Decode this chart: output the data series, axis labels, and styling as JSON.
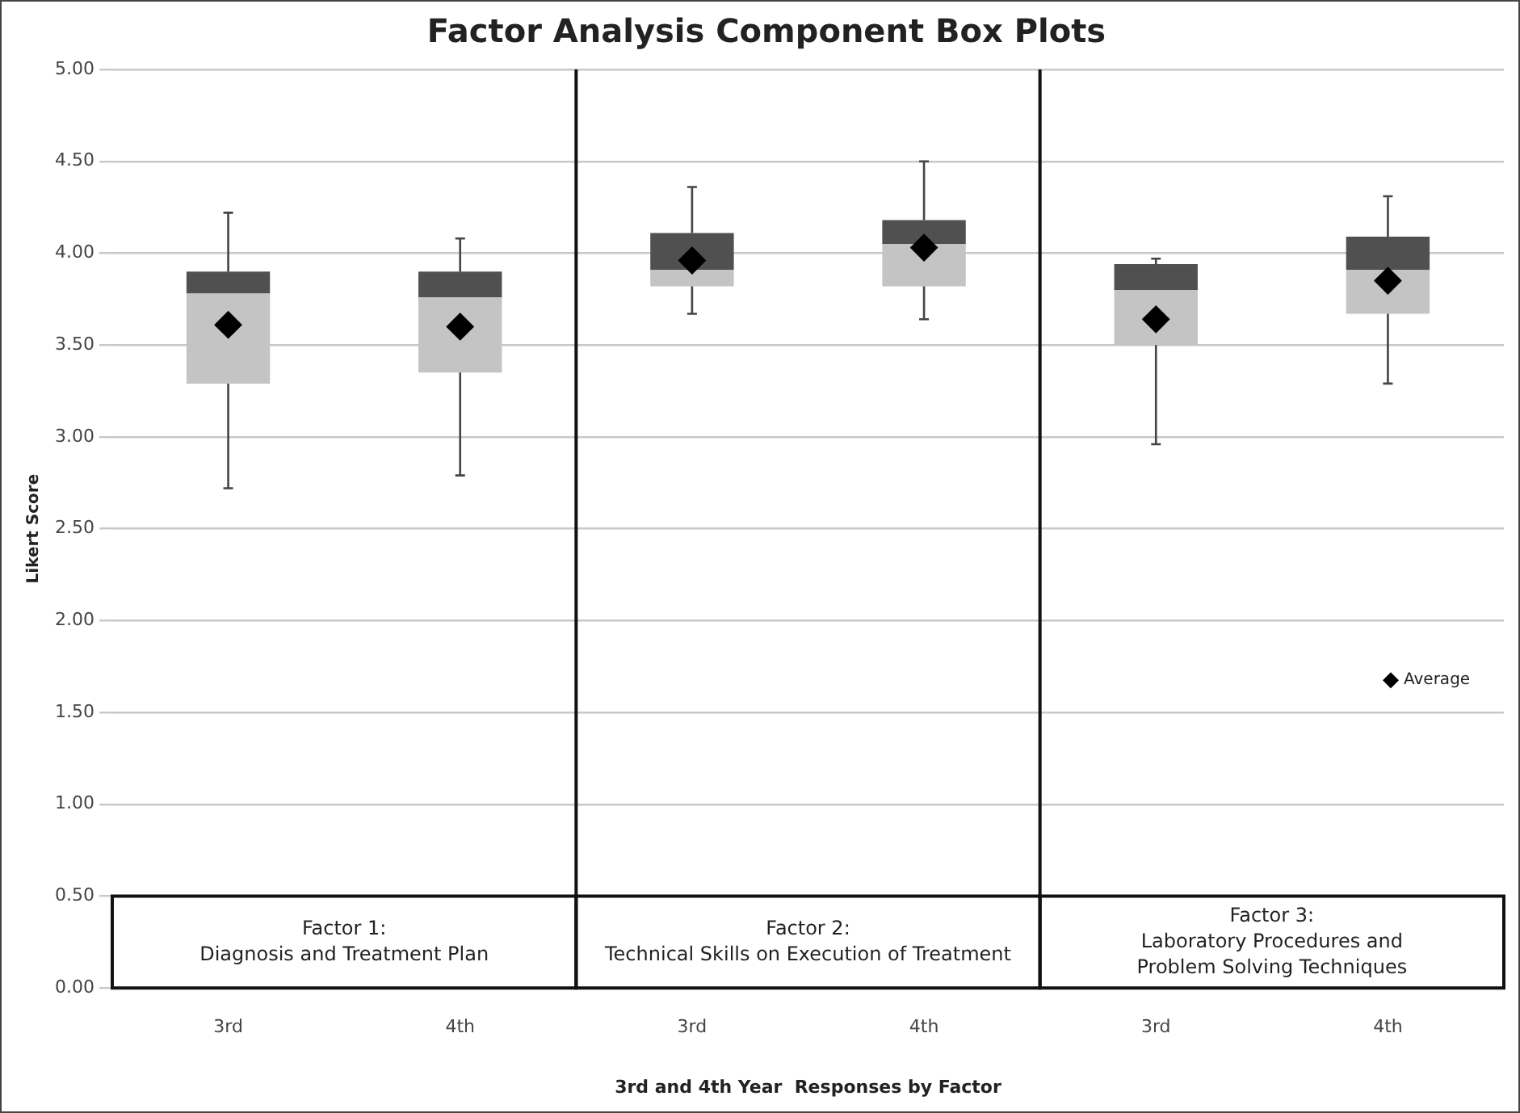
{
  "chart_data": {
    "type": "box",
    "title": "Factor Analysis Component Box Plots",
    "xlabel": "3rd and 4th Year  Responses by Factor",
    "ylabel": "Likert Score",
    "categories": [
      "3rd",
      "4th",
      "3rd",
      "4th",
      "3rd",
      "4th"
    ],
    "series": [
      {
        "color": "#c4c4c4",
        "boxes": [
          {
            "low": 2.72,
            "q1": 3.29,
            "median": 3.78,
            "q3": 3.9,
            "high": 4.22
          },
          {
            "low": 2.79,
            "q1": 3.35,
            "median": 3.76,
            "q3": 3.9,
            "high": 4.08
          },
          {
            "low": 3.67,
            "q1": 3.82,
            "median": 3.91,
            "q3": 4.11,
            "high": 4.36
          },
          {
            "low": 3.64,
            "q1": 3.82,
            "median": 4.05,
            "q3": 4.18,
            "high": 4.5
          },
          {
            "low": 2.96,
            "q1": 3.5,
            "median": 3.8,
            "q3": 3.94,
            "high": 3.97
          },
          {
            "low": 3.29,
            "q1": 3.67,
            "median": 3.91,
            "q3": 4.09,
            "high": 4.31
          }
        ]
      },
      {
        "type": "scatter",
        "name": "Average",
        "color": "#000000",
        "marker": "diamond",
        "values": [
          3.61,
          3.6,
          3.96,
          4.03,
          3.64,
          3.85
        ]
      }
    ],
    "ylim": [
      0,
      5
    ],
    "yticks": [
      {
        "value": 0,
        "label": "0.00"
      },
      {
        "value": 0.5,
        "label": "0.50"
      },
      {
        "value": 1,
        "label": "1.00"
      },
      {
        "value": 1.5,
        "label": "1.50"
      },
      {
        "value": 2,
        "label": "2.00"
      },
      {
        "value": 2.5,
        "label": "2.50"
      },
      {
        "value": 3,
        "label": "3.00"
      },
      {
        "value": 3.5,
        "label": "3.50"
      },
      {
        "value": 4,
        "label": "4.00"
      },
      {
        "value": 4.5,
        "label": "4.50"
      },
      {
        "value": 5,
        "label": "5.00"
      }
    ],
    "grid": "y",
    "legend": "right",
    "annotations": [
      "Factor 1:\nDiagnosis and Treatment Plan",
      "Factor 2:\nTechnical Skills on Execution of Treatment",
      "Factor 3:\nLaboratory Procedures and\nProblem Solving Techniques"
    ]
  }
}
